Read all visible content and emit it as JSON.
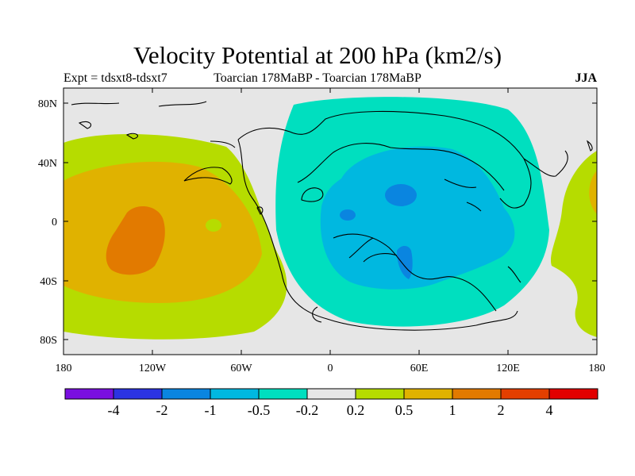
{
  "header": {
    "title": "Velocity Potential at 200 hPa (km2/s)",
    "left_label": "Expt = tdsxt8-tdsxt7",
    "center_label": "Toarcian 178MaBP - Toarcian 178MaBP",
    "right_label": "JJA"
  },
  "map": {
    "lat_ticks": [
      "80N",
      "40N",
      "0",
      "40S",
      "80S"
    ],
    "lon_ticks": [
      "180",
      "120W",
      "60W",
      "0",
      "60E",
      "120E",
      "180"
    ],
    "background_color": "#e6e6e6"
  },
  "colorbar": {
    "colors": [
      "#7a0fe0",
      "#2b33e2",
      "#0a85e0",
      "#00b8e0",
      "#00dfbf",
      "#e6e6e6",
      "#b6dc00",
      "#e0b200",
      "#e27a00",
      "#e33f00",
      "#e20000"
    ],
    "labels": [
      "-4",
      "-2",
      "-1",
      "-0.5",
      "-0.2",
      "0.2",
      "0.5",
      "1",
      "2",
      "4"
    ]
  }
}
